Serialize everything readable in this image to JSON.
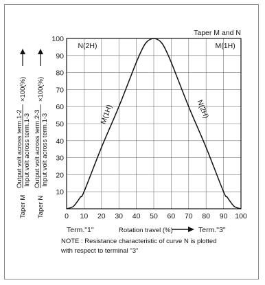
{
  "chart_data": {
    "type": "line",
    "title": "Taper M and N",
    "xlabel": "Rotation travel (%)",
    "x_start_label": "Term.\"1\"",
    "x_end_label": "Term.\"3\"",
    "ylabel_m": {
      "prefix": "Taper M",
      "numerator": "Output volt across term.1-2",
      "denominator": "Input volt across term.1-3",
      "suffix": "×100(%)"
    },
    "ylabel_n": {
      "prefix": "Taper N",
      "numerator": "Output volt across term.2-3",
      "denominator": "Input volt across term.1-3",
      "suffix": "×100(%)"
    },
    "note_line1": "NOTE : Resistance characteristic of curve N is plotted",
    "note_line2": "with respect to terminal \"3\"",
    "xlim": [
      0,
      100
    ],
    "ylim": [
      0,
      100
    ],
    "xticks": [
      0,
      10,
      20,
      30,
      40,
      50,
      60,
      70,
      80,
      90,
      100
    ],
    "yticks": [
      10,
      20,
      30,
      40,
      50,
      60,
      70,
      80,
      90,
      100
    ],
    "grid": true,
    "series": [
      {
        "name": "M(1H)",
        "x": [
          0,
          2,
          4,
          6,
          8,
          10,
          20,
          30,
          40,
          44,
          46,
          48,
          50
        ],
        "y": [
          0,
          0.5,
          1.5,
          4,
          7,
          10,
          36,
          60,
          86,
          95,
          98,
          99.5,
          100
        ]
      },
      {
        "name": "N(2H)",
        "x": [
          50,
          52,
          54,
          56,
          60,
          70,
          80,
          90,
          92,
          94,
          96,
          98,
          100
        ],
        "y": [
          100,
          99.5,
          98,
          95,
          86,
          60,
          36,
          10,
          7,
          4,
          1.5,
          0.5,
          0
        ]
      }
    ],
    "annotations": [
      {
        "text": "N(2H)",
        "x": 12,
        "y": 96
      },
      {
        "text": "M(1H)",
        "x": 91,
        "y": 96
      }
    ],
    "curve_labels": [
      {
        "text": "M(1H)",
        "x": 24,
        "y": 55,
        "angle": -70
      },
      {
        "text": "N(2H)",
        "x": 77,
        "y": 58,
        "angle": 68
      }
    ]
  }
}
